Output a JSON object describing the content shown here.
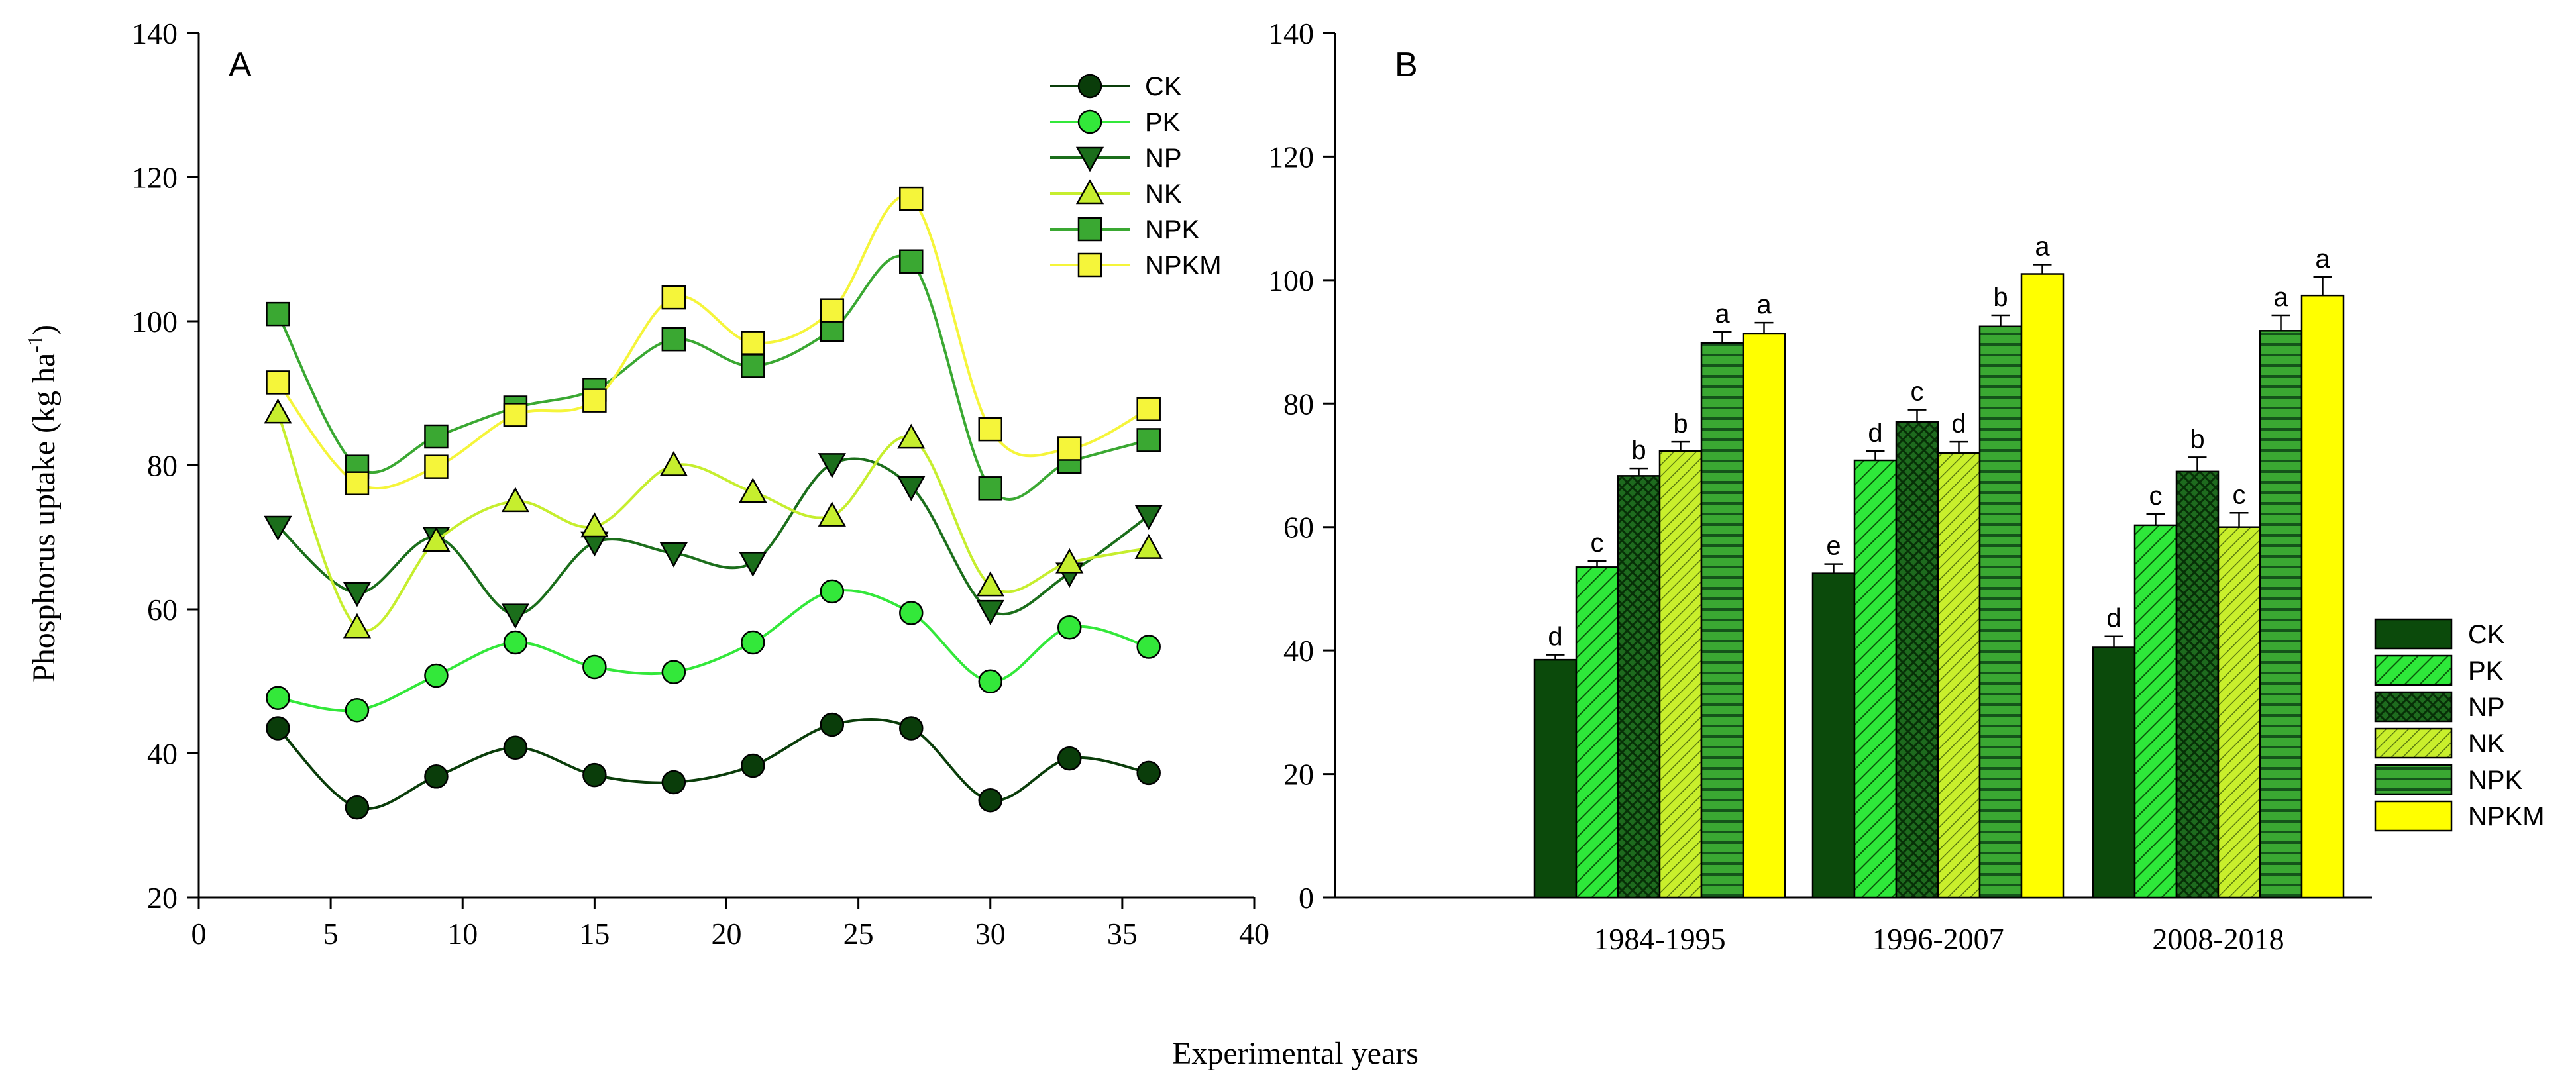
{
  "figure": {
    "shared_xlabel": "Experimental years",
    "ylabel_main": "Phosphorus uptake (kg ha",
    "ylabel_sup": "-1",
    "ylabel_close": ")"
  },
  "chart_data": [
    {
      "type": "line",
      "panel_label": "A",
      "xlabel": "Experimental years",
      "ylabel": "Phosphorus uptake (kg ha-1)",
      "xlim": [
        0,
        40
      ],
      "ylim": [
        20,
        140
      ],
      "xticks": [
        0,
        5,
        10,
        15,
        20,
        25,
        30,
        35,
        40
      ],
      "yticks": [
        20,
        40,
        60,
        80,
        100,
        120,
        140
      ],
      "x": [
        3,
        6,
        9,
        12,
        15,
        18,
        21,
        24,
        27,
        30,
        33,
        36
      ],
      "legend_position": "top-right",
      "series": [
        {
          "name": "CK",
          "marker": "circle",
          "color": "#0a3d0a",
          "values": [
            43.5,
            32.5,
            36.8,
            40.8,
            37.0,
            36.0,
            38.3,
            44.0,
            43.5,
            33.5,
            39.3,
            37.3
          ]
        },
        {
          "name": "PK",
          "marker": "circle",
          "color": "#33e83a",
          "values": [
            47.7,
            46.0,
            50.8,
            55.4,
            52.0,
            51.3,
            55.4,
            62.5,
            59.5,
            50.0,
            57.5,
            54.8
          ]
        },
        {
          "name": "NP",
          "marker": "triangle-down",
          "color": "#1b6e1b",
          "values": [
            71.5,
            62.3,
            70.0,
            59.3,
            69.3,
            67.8,
            66.5,
            80.2,
            77.0,
            59.8,
            65.0,
            73.0
          ]
        },
        {
          "name": "NK",
          "marker": "triangle-up",
          "color": "#c6ee2e",
          "values": [
            87.3,
            57.5,
            69.5,
            75.0,
            71.5,
            80.0,
            76.3,
            73.0,
            83.8,
            63.3,
            66.5,
            68.5
          ]
        },
        {
          "name": "NPK",
          "marker": "square",
          "color": "#3aa832",
          "values": [
            101.0,
            79.8,
            84.0,
            88.0,
            90.5,
            97.5,
            93.8,
            98.8,
            108.3,
            76.8,
            80.5,
            83.5
          ]
        },
        {
          "name": "NPKM",
          "marker": "square",
          "color": "#f5f53a",
          "values": [
            91.5,
            77.5,
            79.8,
            87.0,
            89.0,
            103.3,
            97.0,
            101.5,
            117.0,
            85.0,
            82.3,
            87.8
          ]
        }
      ]
    },
    {
      "type": "bar",
      "panel_label": "B",
      "ylim": [
        0,
        140
      ],
      "yticks": [
        0,
        20,
        40,
        60,
        80,
        100,
        120,
        140
      ],
      "categories": [
        "1984-1995",
        "1996-2007",
        "2008-2018"
      ],
      "legend_position": "bottom-right",
      "series": [
        {
          "name": "CK",
          "color": "#0b4a0b",
          "pattern": "solid",
          "values": [
            38.5,
            52.5,
            40.5
          ],
          "errors": [
            0.8,
            1.5,
            1.8
          ],
          "letters": [
            "d",
            "e",
            "d"
          ]
        },
        {
          "name": "PK",
          "color": "#2ee83a",
          "pattern": "diagonal",
          "values": [
            53.5,
            70.8,
            60.3
          ],
          "errors": [
            1.0,
            1.5,
            1.8
          ],
          "letters": [
            "c",
            "d",
            "c"
          ]
        },
        {
          "name": "NP",
          "color": "#1e6b1e",
          "pattern": "crosshatch",
          "values": [
            68.3,
            77.0,
            69.0
          ],
          "errors": [
            1.2,
            2.0,
            2.3
          ],
          "letters": [
            "b",
            "c",
            "b"
          ]
        },
        {
          "name": "NK",
          "color": "#c9ef2c",
          "pattern": "diagonal-fine",
          "values": [
            72.3,
            72.0,
            60.0
          ],
          "errors": [
            1.5,
            1.8,
            2.3
          ],
          "letters": [
            "b",
            "d",
            "c"
          ]
        },
        {
          "name": "NPK",
          "color": "#3aa832",
          "pattern": "horizontal",
          "values": [
            89.8,
            92.5,
            91.8
          ],
          "errors": [
            1.8,
            1.8,
            2.5
          ],
          "letters": [
            "a",
            "b",
            "a"
          ]
        },
        {
          "name": "NPKM",
          "color": "#ffff00",
          "pattern": "solid",
          "values": [
            91.3,
            101.0,
            97.5
          ],
          "errors": [
            1.8,
            1.5,
            3.0
          ],
          "letters": [
            "a",
            "a",
            "a"
          ]
        }
      ]
    }
  ]
}
